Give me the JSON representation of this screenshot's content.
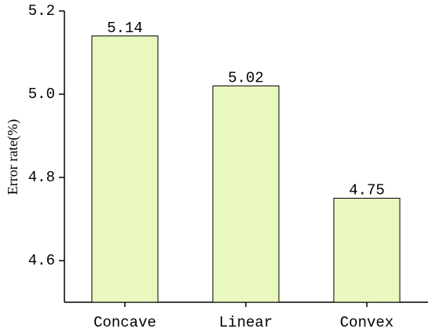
{
  "chart_data": {
    "type": "bar",
    "y_label": "Error rate(%)",
    "categories": [
      "Concave",
      "Linear",
      "Convex"
    ],
    "values": [
      5.14,
      5.02,
      4.75
    ],
    "color": "#e8f8be",
    "edge_color": "#000000",
    "ylim": [
      4.5,
      5.2
    ],
    "yticks": [
      4.6,
      4.8,
      {
        "value": 5,
        "label": "5.0"
      },
      5.2
    ],
    "grid": false
  }
}
